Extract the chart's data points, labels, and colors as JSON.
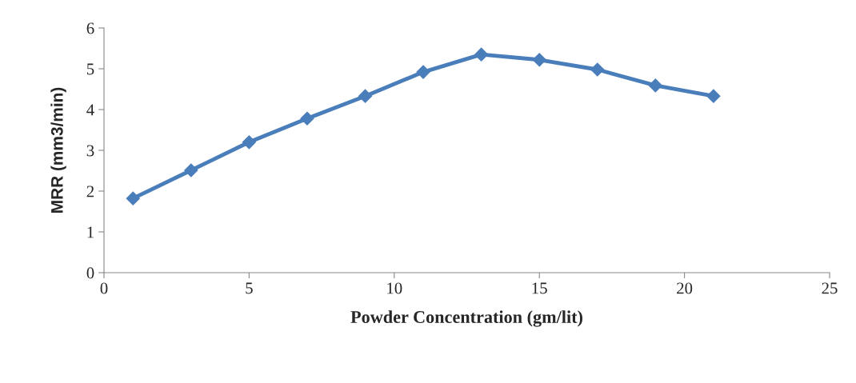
{
  "chart_data": {
    "type": "line",
    "xlabel": "Powder Concentration (gm/lit)",
    "ylabel": "MRR (mm3/min)",
    "x": [
      1,
      3,
      5,
      7,
      9,
      11,
      13,
      15,
      17,
      19,
      21
    ],
    "series": [
      {
        "color": "#4a7ebb",
        "values": [
          1.82,
          2.51,
          3.2,
          3.78,
          4.33,
          4.92,
          5.35,
          5.22,
          4.98,
          4.59,
          4.33
        ]
      }
    ],
    "xlim": [
      0,
      25
    ],
    "xticks": [
      0,
      5,
      10,
      15,
      20,
      25
    ],
    "ylim": [
      0,
      6
    ],
    "yticks": [
      0,
      1,
      2,
      3,
      4,
      5,
      6
    ],
    "marker": "diamond",
    "line_style": "solid",
    "grid": false,
    "legend": false
  }
}
